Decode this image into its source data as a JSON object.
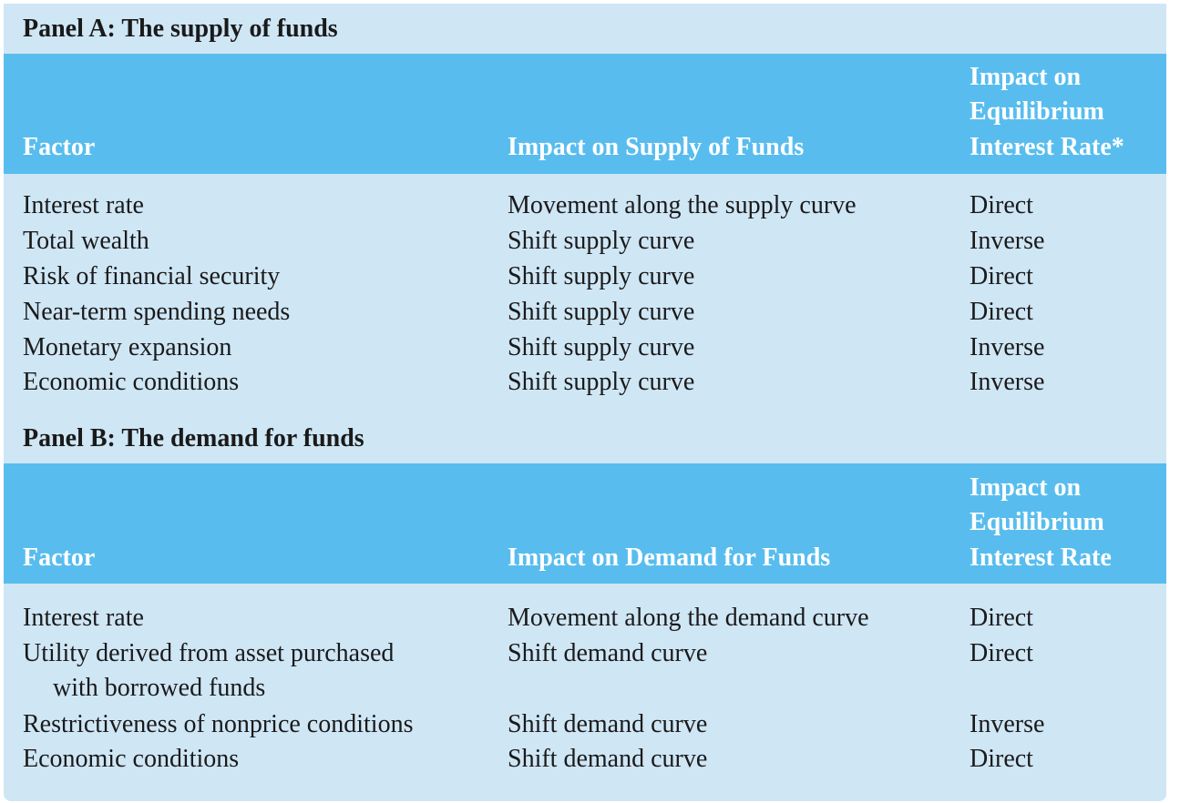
{
  "panel_a": {
    "title": "Panel A: The supply of funds",
    "headers": {
      "factor": "Factor",
      "impact": "Impact on Supply of Funds",
      "equilibrium_lines": [
        "Impact on",
        "Equilibrium",
        "Interest Rate*"
      ]
    },
    "rows": [
      {
        "factor": "Interest rate",
        "impact": "Movement along the supply curve",
        "equilibrium": "Direct"
      },
      {
        "factor": "Total wealth",
        "impact": "Shift supply curve",
        "equilibrium": "Inverse"
      },
      {
        "factor": "Risk of financial security",
        "impact": "Shift supply curve",
        "equilibrium": "Direct"
      },
      {
        "factor": "Near-term spending needs",
        "impact": "Shift supply curve",
        "equilibrium": "Direct"
      },
      {
        "factor": "Monetary expansion",
        "impact": "Shift supply curve",
        "equilibrium": "Inverse"
      },
      {
        "factor": "Economic conditions",
        "impact": "Shift supply curve",
        "equilibrium": "Inverse"
      }
    ]
  },
  "panel_b": {
    "title": "Panel B: The demand for funds",
    "headers": {
      "factor": "Factor",
      "impact": "Impact on Demand for Funds",
      "equilibrium_lines": [
        "Impact on",
        "Equilibrium",
        "Interest Rate"
      ]
    },
    "rows": [
      {
        "factor": "Interest rate",
        "impact": "Movement along the demand curve",
        "equilibrium": "Direct"
      },
      {
        "factor": "Utility derived from asset purchased",
        "factor_cont": "with borrowed funds",
        "impact": "Shift demand curve",
        "equilibrium": "Direct"
      },
      {
        "factor": "Restrictiveness of nonprice conditions",
        "impact": "Shift demand curve",
        "equilibrium": "Inverse"
      },
      {
        "factor": "Economic conditions",
        "impact": "Shift demand curve",
        "equilibrium": "Direct"
      }
    ]
  }
}
